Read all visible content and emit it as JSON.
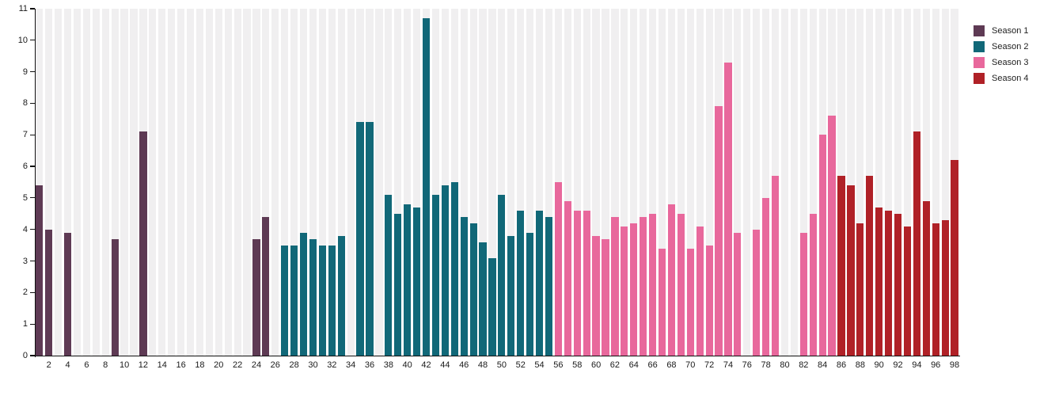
{
  "chart_data": {
    "type": "bar",
    "title": "",
    "xlabel": "",
    "ylabel": "",
    "ylim": [
      0,
      11
    ],
    "x_range": [
      1,
      98
    ],
    "grid": "off",
    "plot_background_band_color": "#f0eff0",
    "axis_color": "#111111",
    "legend_position": "top-right-outside",
    "y_ticks": [
      0,
      1,
      2,
      3,
      4,
      5,
      6,
      7,
      8,
      9,
      10,
      11
    ],
    "x_tick_labels": [
      2,
      4,
      6,
      8,
      10,
      12,
      14,
      16,
      18,
      20,
      22,
      24,
      26,
      28,
      30,
      32,
      34,
      36,
      38,
      40,
      42,
      44,
      46,
      48,
      50,
      52,
      54,
      56,
      58,
      60,
      62,
      64,
      66,
      68,
      70,
      72,
      74,
      76,
      78,
      80,
      82,
      84,
      86,
      88,
      90,
      92,
      94,
      96,
      98
    ],
    "series": [
      {
        "name": "Season 1",
        "color": "#5e3a54",
        "points": [
          [
            1,
            5.4
          ],
          [
            2,
            4.0
          ],
          [
            4,
            3.9
          ],
          [
            9,
            3.7
          ],
          [
            12,
            7.1
          ],
          [
            24,
            3.7
          ],
          [
            25,
            4.4
          ]
        ]
      },
      {
        "name": "Season 2",
        "color": "#116878",
        "points": [
          [
            27,
            3.5
          ],
          [
            28,
            3.5
          ],
          [
            29,
            3.9
          ],
          [
            30,
            3.7
          ],
          [
            31,
            3.5
          ],
          [
            32,
            3.5
          ],
          [
            33,
            3.8
          ],
          [
            35,
            7.4
          ],
          [
            36,
            7.4
          ],
          [
            38,
            5.1
          ],
          [
            39,
            4.5
          ],
          [
            40,
            4.8
          ],
          [
            41,
            4.7
          ],
          [
            42,
            10.7
          ],
          [
            43,
            5.1
          ],
          [
            44,
            5.4
          ],
          [
            45,
            5.5
          ],
          [
            46,
            4.4
          ],
          [
            47,
            4.2
          ],
          [
            48,
            3.6
          ],
          [
            49,
            3.1
          ],
          [
            50,
            5.1
          ],
          [
            51,
            3.8
          ],
          [
            52,
            4.6
          ],
          [
            53,
            3.9
          ],
          [
            54,
            4.6
          ],
          [
            55,
            4.4
          ]
        ]
      },
      {
        "name": "Season 3",
        "color": "#e8689c",
        "points": [
          [
            56,
            5.5
          ],
          [
            57,
            4.9
          ],
          [
            58,
            4.6
          ],
          [
            59,
            4.6
          ],
          [
            60,
            3.8
          ],
          [
            61,
            3.7
          ],
          [
            62,
            4.4
          ],
          [
            63,
            4.1
          ],
          [
            64,
            4.2
          ],
          [
            65,
            4.4
          ],
          [
            66,
            4.5
          ],
          [
            67,
            3.4
          ],
          [
            68,
            4.8
          ],
          [
            69,
            4.5
          ],
          [
            70,
            3.4
          ],
          [
            71,
            4.1
          ],
          [
            72,
            3.5
          ],
          [
            73,
            7.9
          ],
          [
            74,
            9.3
          ],
          [
            75,
            3.9
          ],
          [
            77,
            4.0
          ],
          [
            78,
            5.0
          ],
          [
            79,
            5.7
          ],
          [
            82,
            3.9
          ],
          [
            83,
            4.5
          ],
          [
            84,
            7.0
          ],
          [
            85,
            7.6
          ]
        ]
      },
      {
        "name": "Season 4",
        "color": "#b02127",
        "points": [
          [
            86,
            5.7
          ],
          [
            87,
            5.4
          ],
          [
            88,
            4.2
          ],
          [
            89,
            5.7
          ],
          [
            90,
            4.7
          ],
          [
            91,
            4.6
          ],
          [
            92,
            4.5
          ],
          [
            93,
            4.1
          ],
          [
            94,
            7.1
          ],
          [
            95,
            4.9
          ],
          [
            96,
            4.2
          ],
          [
            97,
            4.3
          ],
          [
            98,
            6.2
          ]
        ]
      }
    ]
  }
}
